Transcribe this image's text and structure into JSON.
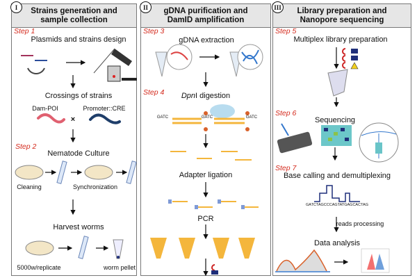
{
  "panels": [
    {
      "num": "I",
      "title_line1": "Strains generation and",
      "title_line2": "sample collection"
    },
    {
      "num": "II",
      "title_line1": "gDNA purification and",
      "title_line2": "DamID amplification"
    },
    {
      "num": "III",
      "title_line1": "Library preparation and",
      "title_line2": "Nanopore sequencing"
    }
  ],
  "steps": [
    "Step 1",
    "Step 2",
    "Step 3",
    "Step 4",
    "Step 5",
    "Step 6",
    "Step 7"
  ],
  "panel1": {
    "plasmids": "Plasmids and strains design",
    "crossings": "Crossings of strains",
    "dam_poi": "Dam-POI",
    "promoter_cre": "Promoter::CRE",
    "cross": "×",
    "culture": "Nematode Culture",
    "cleaning": "Cleaning",
    "sync": "Synchronization",
    "harvest": "Harvest worms",
    "replicate": "5000w/replicate",
    "pellet": "worm pellet"
  },
  "panel2": {
    "extraction": "gDNA extraction",
    "dpn_italic": "Dpn",
    "dpn_rest": "I digestion",
    "gatc": "GATC",
    "adapter": "Adapter ligation",
    "pcr": "PCR"
  },
  "panel3": {
    "multiplex": "Multiplex library preparation",
    "sequencing": "Sequencing",
    "basecalling": "Base calling and demultiplexing",
    "sequence": "GATCTAGCCCAGTATGAGCACTAG",
    "reads": "reads processing",
    "analysis": "Data analysis"
  },
  "colors": {
    "step": "#d4291c",
    "header_bg": "#e6e6e6",
    "dna": "#f4b63c",
    "methyl": "#d9622b",
    "navy": "#1f2f7a"
  }
}
